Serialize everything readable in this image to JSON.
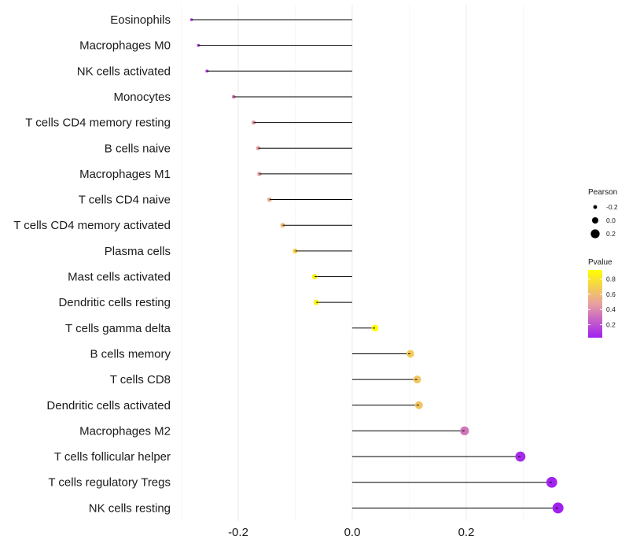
{
  "chart_data": {
    "type": "lollipop",
    "title": "",
    "xlabel": "",
    "ylabel": "",
    "xlim": [
      -0.3,
      0.365
    ],
    "x_ticks": [
      -0.2,
      0.0,
      0.2
    ],
    "x_tick_labels": [
      "-0.2",
      "0.0",
      "0.2"
    ],
    "grid": true,
    "categories": [
      "Eosinophils",
      "Macrophages M0",
      "NK cells activated",
      "Monocytes",
      "T cells CD4 memory resting",
      "B cells naive",
      "Macrophages M1",
      "T cells CD4 naive",
      "T cells CD4 memory activated",
      "Plasma cells",
      "Mast cells activated",
      "Dendritic cells resting",
      "T cells gamma delta",
      "B cells memory",
      "T cells CD8",
      "Dendritic cells activated",
      "Macrophages M2",
      "T cells follicular helper",
      "T cells regulatory  Tregs",
      "NK cells resting"
    ],
    "pearson": [
      -0.282,
      -0.27,
      -0.255,
      -0.208,
      -0.173,
      -0.165,
      -0.163,
      -0.145,
      -0.122,
      -0.1,
      -0.066,
      -0.063,
      0.04,
      0.102,
      0.114,
      0.117,
      0.197,
      0.295,
      0.35,
      0.361
    ],
    "pvalue": [
      0.1,
      0.13,
      0.17,
      0.33,
      0.45,
      0.47,
      0.46,
      0.52,
      0.6,
      0.7,
      0.85,
      0.86,
      0.92,
      0.68,
      0.65,
      0.64,
      0.33,
      0.07,
      0.04,
      0.03
    ],
    "legend": {
      "position": "right",
      "size_title": "Pearson",
      "size_values": [
        -0.2,
        0.0,
        0.2
      ],
      "size_labels": [
        "-0.2",
        "0.0",
        "0.2"
      ],
      "color_title": "Pvalue",
      "color_ticks": [
        0.8,
        0.6,
        0.4,
        0.2
      ],
      "color_tick_labels": [
        "0.8",
        "0.6",
        "0.4",
        "0.2"
      ],
      "color_range": [
        0.03,
        0.92
      ],
      "color_low": "#a020f0",
      "color_mid": "#e8a0a0",
      "color_high": "#ffff00"
    }
  }
}
